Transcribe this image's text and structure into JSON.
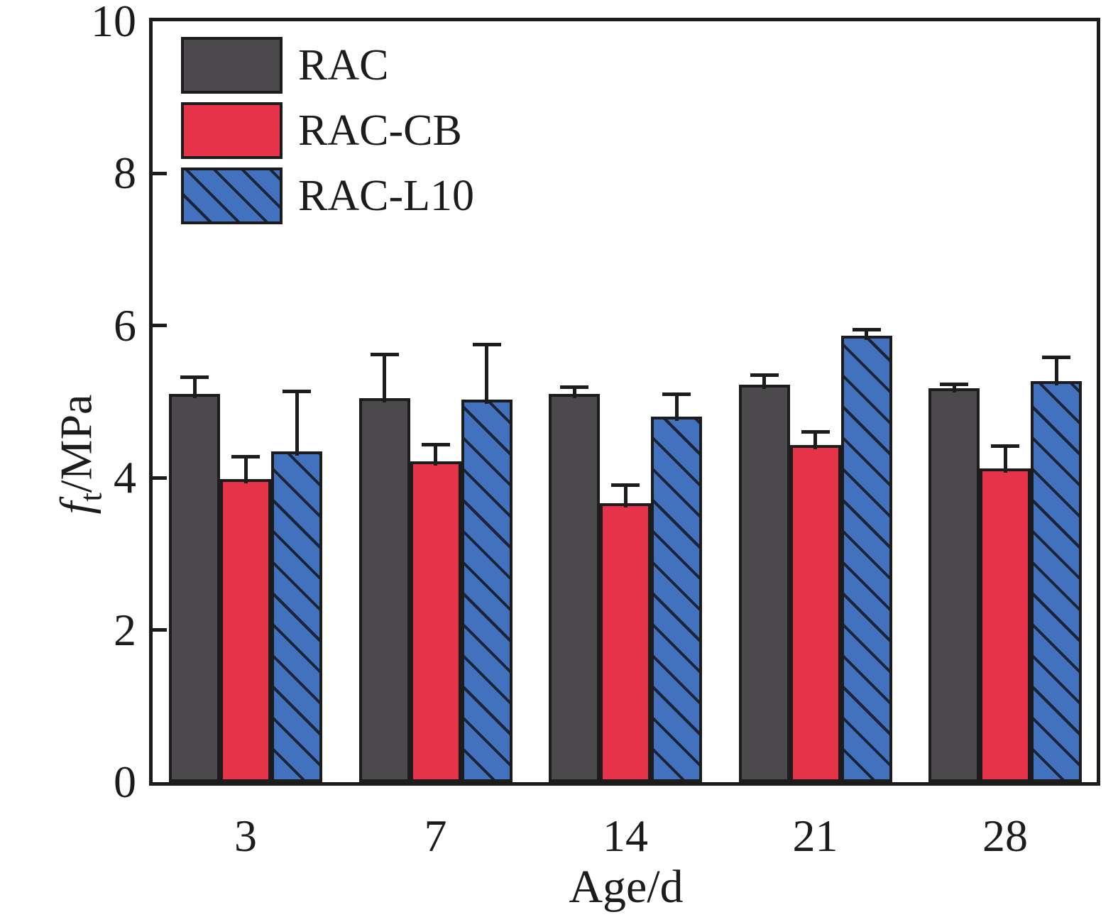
{
  "axis": {
    "y": {
      "italic": "f",
      "sub": "t",
      "unit": "/MPa"
    },
    "x": {
      "label": "Age/d"
    }
  },
  "chart_data": {
    "type": "bar",
    "title": "",
    "xlabel": "Age/d",
    "ylabel": "ft/MPa",
    "categories": [
      "3",
      "7",
      "14",
      "21",
      "28"
    ],
    "y_ticks": [
      0,
      2,
      4,
      6,
      8,
      10
    ],
    "ylim": [
      0,
      10
    ],
    "grid": false,
    "legend_position": "top-left",
    "error_bars": "upper",
    "series": [
      {
        "name": "RAC",
        "color": "#4b494b",
        "hatch": false,
        "values": [
          5.1,
          5.05,
          5.1,
          5.22,
          5.18
        ],
        "errors": [
          0.22,
          0.57,
          0.09,
          0.13,
          0.05
        ]
      },
      {
        "name": "RAC-CB",
        "color": "#e63349",
        "hatch": false,
        "values": [
          3.98,
          4.22,
          3.67,
          4.43,
          4.12
        ],
        "errors": [
          0.3,
          0.22,
          0.23,
          0.17,
          0.3
        ]
      },
      {
        "name": "RAC-L10",
        "color": "#4271bd",
        "hatch": true,
        "hatch_color": "#1b2336",
        "values": [
          4.35,
          5.03,
          4.8,
          5.87,
          5.27
        ],
        "errors": [
          0.79,
          0.72,
          0.3,
          0.08,
          0.31
        ]
      }
    ]
  }
}
